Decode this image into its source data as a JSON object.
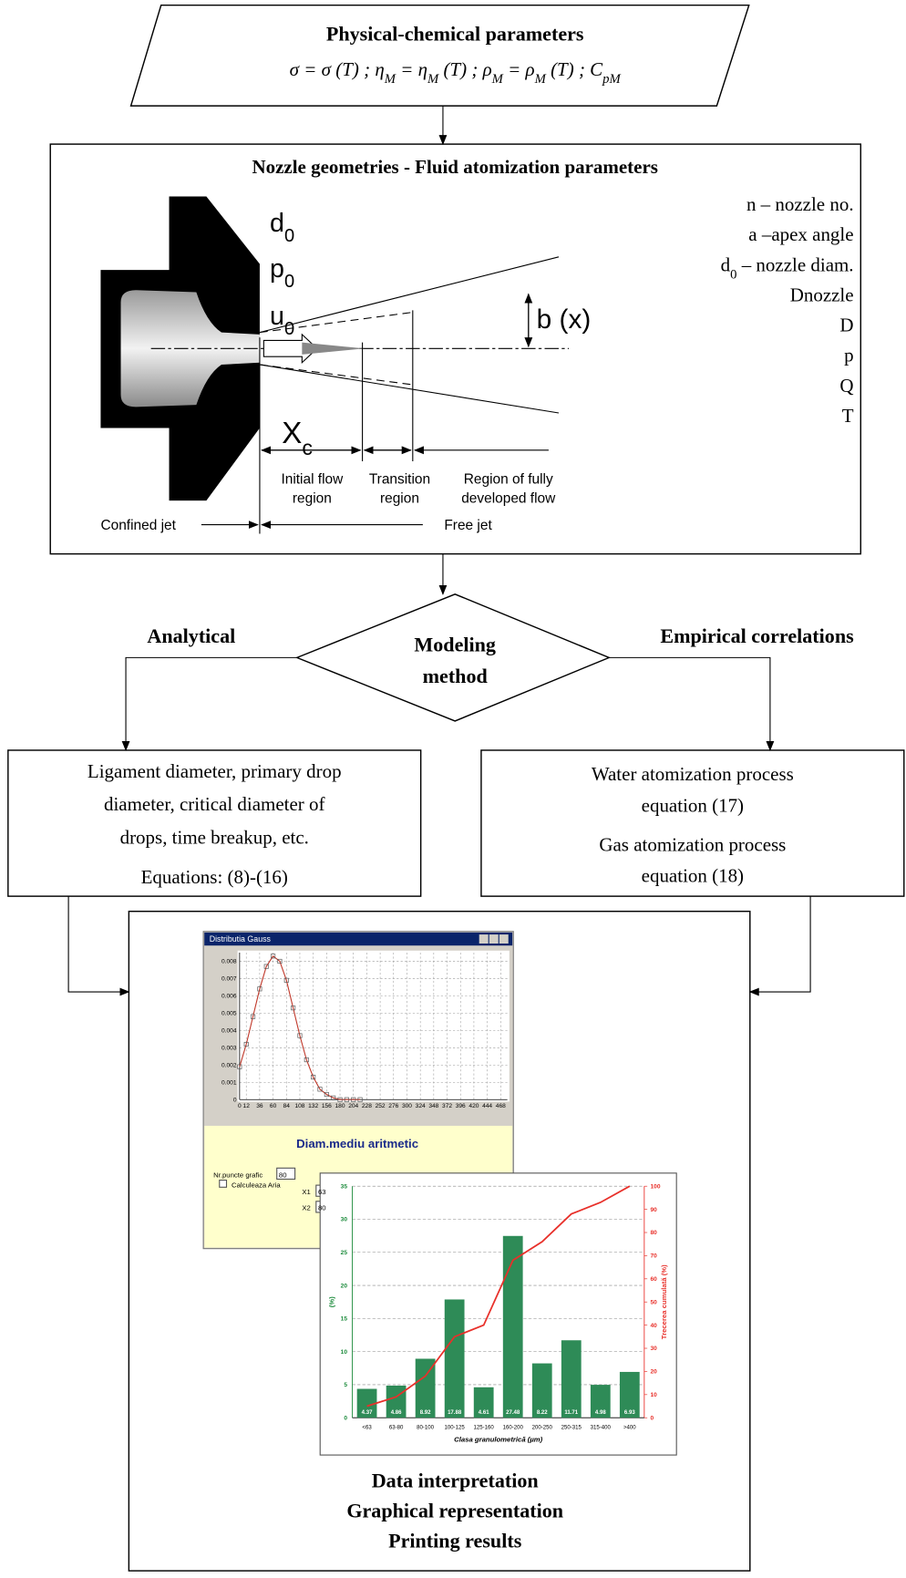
{
  "top": {
    "title": "Physical-chemical parameters",
    "formula": [
      {
        "t": "σ = σ (T) ; η"
      },
      {
        "s": "M"
      },
      {
        "t": " = η"
      },
      {
        "s": "M"
      },
      {
        "t": " (T) ; ρ"
      },
      {
        "s": "M"
      },
      {
        "t": " = ρ"
      },
      {
        "s": "M"
      },
      {
        "t": " (T) ; C"
      },
      {
        "s": "pM"
      }
    ]
  },
  "nozzle_box": {
    "title": "Nozzle geometries  - Fluid atomization parameters",
    "parameters": [
      "n – nozzle no.",
      "a –apex angle",
      [
        {
          "t": "d"
        },
        {
          "s": "0"
        },
        {
          "t": " – nozzle diam."
        }
      ],
      "Dnozzle",
      "D",
      "p",
      "Q",
      "T"
    ],
    "figure": {
      "symbols": [
        [
          {
            "t": "d"
          },
          {
            "s": "0"
          }
        ],
        [
          {
            "t": "p"
          },
          {
            "s": "0"
          }
        ],
        [
          {
            "t": "u"
          },
          {
            "s": "0"
          }
        ]
      ],
      "jet_width": "b (x)",
      "core_length": [
        {
          "t": "X"
        },
        {
          "s": "c"
        }
      ],
      "regions": [
        [
          "Initial flow",
          "region"
        ],
        [
          "Transition",
          "region"
        ],
        [
          "Region of fully",
          "developed flow"
        ]
      ],
      "confined": "Confined jet",
      "free": "Free jet"
    }
  },
  "decision": {
    "label": [
      "Modeling",
      "method"
    ],
    "left": "Analytical",
    "right": "Empirical correlations"
  },
  "analytical_box": {
    "lines": [
      "Ligament diameter, primary drop",
      "diameter, critical diameter of",
      "drops, time breakup, etc.",
      "Equations: (8)-(16)"
    ]
  },
  "empirical_box": {
    "lines": [
      "Water atomization process",
      "equation (17)",
      "Gas atomization process",
      "equation (18)"
    ]
  },
  "output_box": {
    "lines": [
      "Data interpretation",
      "Graphical representation",
      "Printing results"
    ],
    "gauss": {
      "type": "line",
      "window_title": "Distributia Gauss",
      "x": [
        0,
        12,
        24,
        36,
        48,
        60,
        72,
        84,
        96,
        108,
        120,
        132,
        144,
        156,
        168,
        180,
        192,
        204,
        216
      ],
      "values": [
        0.0019,
        0.0032,
        0.0048,
        0.0064,
        0.0077,
        0.0083,
        0.008,
        0.0069,
        0.0053,
        0.0037,
        0.0023,
        0.0013,
        0.0006,
        0.0003,
        0.0001,
        0,
        0,
        0,
        0
      ],
      "xlim": [
        0,
        480
      ],
      "xticks": [
        0,
        12,
        36,
        60,
        84,
        108,
        132,
        156,
        180,
        204,
        228,
        252,
        276,
        300,
        324,
        348,
        372,
        396,
        420,
        444,
        468
      ],
      "ylim": [
        0,
        0.0085
      ],
      "yticks": [
        0,
        0.001,
        0.002,
        0.003,
        0.004,
        0.005,
        0.006,
        0.007,
        0.008
      ],
      "color": "#c0392b",
      "grid": true
    },
    "gauss_panel": {
      "heading": "Diam.mediu aritmetic",
      "points_label": "Nr.puncte grafic",
      "points": "80",
      "area_label": "Calculeaza Aria",
      "x1_label": "X1",
      "x1": "63",
      "x2_label": "X2",
      "x2": "80"
    },
    "distribution": {
      "type": "bar",
      "categories": [
        "<63",
        "63-80",
        "80-100",
        "100-125",
        "125-160",
        "160-200",
        "200-250",
        "250-315",
        "315-400",
        ">400"
      ],
      "values": [
        4.37,
        4.86,
        8.92,
        17.88,
        4.61,
        27.48,
        8.22,
        11.71,
        4.98,
        6.93
      ],
      "color": "#2e8b57",
      "line_values": [
        5,
        9,
        18,
        35,
        40,
        68,
        76,
        88,
        93,
        100
      ],
      "line_color": "#e8302a",
      "ylim": [
        0,
        35
      ],
      "yticks": [
        0,
        5,
        10,
        15,
        20,
        25,
        30,
        35
      ],
      "y2lim": [
        0,
        100
      ],
      "y2ticks": [
        0,
        10,
        20,
        30,
        40,
        50,
        60,
        70,
        80,
        90,
        100
      ],
      "ylabel": "(%)",
      "y2label": "Trecerea cumulată (%)",
      "xlabel": "Clasa granulometrică (µm)",
      "grid": true
    }
  }
}
